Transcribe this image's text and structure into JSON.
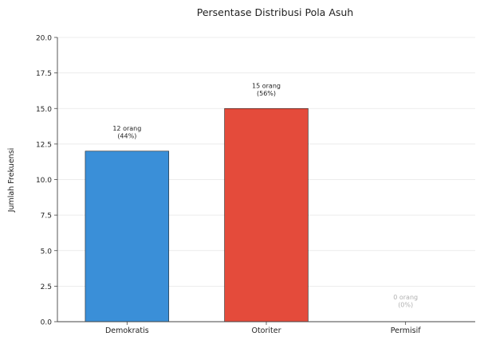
{
  "chart_data": {
    "type": "bar",
    "title": "Persentase Distribusi Pola Asuh",
    "xlabel": "",
    "ylabel": "Jumlah Frekuensi",
    "categories": [
      "Demokratis",
      "Otoriter",
      "Permisif"
    ],
    "values": [
      12,
      15,
      0
    ],
    "bar_labels": [
      [
        "12 orang",
        "(44%)"
      ],
      [
        "15 orang",
        "(56%)"
      ],
      [
        "0 orang",
        "(0%)"
      ]
    ],
    "colors": [
      "#3a8fd8",
      "#e44b3b",
      "#9aa5a6"
    ],
    "ylim": [
      0,
      20
    ],
    "yticks": [
      "0.0",
      "2.5",
      "5.0",
      "7.5",
      "10.0",
      "12.5",
      "15.0",
      "17.5",
      "20.0"
    ],
    "grid": true,
    "legend": "none"
  }
}
